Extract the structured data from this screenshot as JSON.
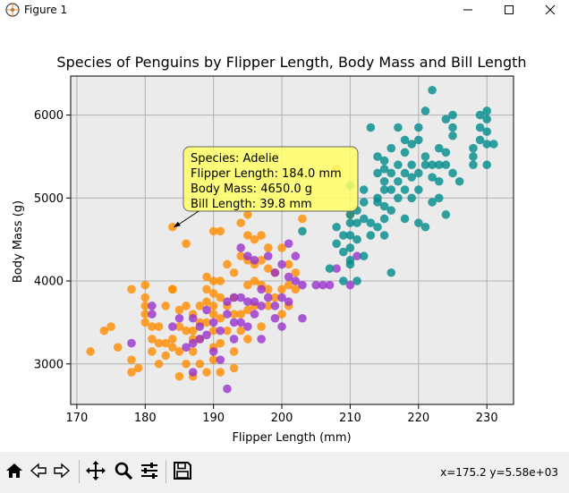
{
  "window": {
    "title": "Figure 1",
    "minimize_icon": "minimize-icon",
    "maximize_icon": "maximize-icon",
    "close_icon": "close-icon"
  },
  "toolbar": {
    "buttons": [
      "home-icon",
      "back-arrow-icon",
      "forward-arrow-icon",
      "pan-icon",
      "zoom-icon",
      "configure-subplots-icon",
      "save-icon"
    ],
    "status": "x=175.2 y=5.58e+03"
  },
  "chart_data": {
    "type": "scatter",
    "title": "Species of Penguins by Flipper Length, Body Mass and Bill Length",
    "xlabel": "Flipper Length (mm)",
    "ylabel": "Body Mass (g)",
    "xlim": [
      169.1,
      233.9
    ],
    "ylim": [
      2512,
      6470
    ],
    "xticks": [
      170,
      180,
      190,
      200,
      210,
      220,
      230
    ],
    "yticks": [
      3000,
      4000,
      5000,
      6000
    ],
    "grid": true,
    "background": "#ebebeb",
    "colors": {
      "orange": "#ff8c00",
      "purple": "#9932cc",
      "teal": "#008b8b"
    },
    "series": [
      {
        "color": "orange",
        "points": [
          [
            172,
            3150
          ],
          [
            174,
            3400
          ],
          [
            175,
            3450
          ],
          [
            176,
            3200
          ],
          [
            178,
            3900
          ],
          [
            178,
            3050
          ],
          [
            178,
            2900
          ],
          [
            179,
            2950
          ],
          [
            180,
            3950
          ],
          [
            180,
            3800
          ],
          [
            180,
            3700
          ],
          [
            180,
            3600
          ],
          [
            180,
            3500
          ],
          [
            181,
            3300
          ],
          [
            181,
            3150
          ],
          [
            182,
            3250
          ],
          [
            182,
            3450
          ],
          [
            182,
            3000
          ],
          [
            183,
            3100
          ],
          [
            183,
            3700
          ],
          [
            183,
            3250
          ],
          [
            184,
            4650
          ],
          [
            184,
            3900
          ],
          [
            184,
            3300
          ],
          [
            184,
            3200
          ],
          [
            185,
            3650
          ],
          [
            185,
            3150
          ],
          [
            185,
            2850
          ],
          [
            185,
            3450
          ],
          [
            186,
            4450
          ],
          [
            186,
            3700
          ],
          [
            186,
            3400
          ],
          [
            186,
            3000
          ],
          [
            187,
            3600
          ],
          [
            187,
            3400
          ],
          [
            187,
            3300
          ],
          [
            187,
            3150
          ],
          [
            187,
            2850
          ],
          [
            188,
            3700
          ],
          [
            188,
            3500
          ],
          [
            188,
            3300
          ],
          [
            188,
            3000
          ],
          [
            189,
            4050
          ],
          [
            189,
            3900
          ],
          [
            189,
            3750
          ],
          [
            189,
            3500
          ],
          [
            189,
            2900
          ],
          [
            190,
            4600
          ],
          [
            190,
            4000
          ],
          [
            190,
            3850
          ],
          [
            190,
            3700
          ],
          [
            190,
            3600
          ],
          [
            190,
            3400
          ],
          [
            190,
            3200
          ],
          [
            190,
            3050
          ],
          [
            191,
            4600
          ],
          [
            191,
            4000
          ],
          [
            191,
            3800
          ],
          [
            191,
            3550
          ],
          [
            191,
            3250
          ],
          [
            191,
            2900
          ],
          [
            192,
            4200
          ],
          [
            192,
            3700
          ],
          [
            192,
            3400
          ],
          [
            193,
            4100
          ],
          [
            193,
            3800
          ],
          [
            193,
            3600
          ],
          [
            193,
            3150
          ],
          [
            193,
            2950
          ],
          [
            194,
            4700
          ],
          [
            194,
            4300
          ],
          [
            194,
            3600
          ],
          [
            194,
            3400
          ],
          [
            195,
            4800
          ],
          [
            195,
            4550
          ],
          [
            195,
            4250
          ],
          [
            195,
            3950
          ],
          [
            195,
            3650
          ],
          [
            195,
            3300
          ],
          [
            196,
            4500
          ],
          [
            196,
            4200
          ],
          [
            196,
            4000
          ],
          [
            196,
            3700
          ],
          [
            197,
            4550
          ],
          [
            197,
            4250
          ],
          [
            197,
            3950
          ],
          [
            197,
            3450
          ],
          [
            198,
            4400
          ],
          [
            198,
            4150
          ],
          [
            198,
            3900
          ],
          [
            198,
            3700
          ],
          [
            199,
            4100
          ],
          [
            199,
            3800
          ],
          [
            200,
            4400
          ],
          [
            200,
            3900
          ],
          [
            200,
            3600
          ],
          [
            201,
            4200
          ],
          [
            201,
            3950
          ],
          [
            201,
            3700
          ],
          [
            202,
            4100
          ],
          [
            202,
            3900
          ],
          [
            203,
            4750
          ],
          [
            208,
            5350
          ],
          [
            210,
            4800
          ],
          [
            184,
            3900
          ],
          [
            181,
            3450
          ]
        ]
      },
      {
        "color": "purple",
        "points": [
          [
            178,
            3250
          ],
          [
            181,
            3700
          ],
          [
            181,
            3600
          ],
          [
            184,
            3450
          ],
          [
            185,
            3550
          ],
          [
            186,
            3200
          ],
          [
            187,
            3550
          ],
          [
            187,
            3250
          ],
          [
            187,
            2900
          ],
          [
            188,
            3450
          ],
          [
            188,
            3300
          ],
          [
            189,
            3350
          ],
          [
            189,
            3650
          ],
          [
            190,
            3150
          ],
          [
            190,
            3500
          ],
          [
            191,
            3400
          ],
          [
            191,
            3050
          ],
          [
            192,
            3600
          ],
          [
            192,
            3750
          ],
          [
            192,
            2700
          ],
          [
            193,
            3800
          ],
          [
            193,
            3500
          ],
          [
            193,
            3300
          ],
          [
            194,
            4400
          ],
          [
            194,
            3800
          ],
          [
            194,
            3500
          ],
          [
            195,
            4300
          ],
          [
            195,
            3750
          ],
          [
            195,
            3450
          ],
          [
            196,
            4250
          ],
          [
            196,
            3750
          ],
          [
            196,
            3600
          ],
          [
            197,
            3900
          ],
          [
            197,
            3700
          ],
          [
            197,
            3300
          ],
          [
            198,
            4300
          ],
          [
            198,
            3800
          ],
          [
            199,
            4100
          ],
          [
            199,
            3700
          ],
          [
            199,
            3550
          ],
          [
            200,
            4200
          ],
          [
            200,
            3800
          ],
          [
            200,
            3450
          ],
          [
            201,
            4450
          ],
          [
            201,
            4050
          ],
          [
            201,
            3750
          ],
          [
            202,
            4300
          ],
          [
            202,
            4000
          ],
          [
            203,
            3950
          ],
          [
            203,
            3550
          ],
          [
            205,
            3950
          ],
          [
            206,
            3950
          ],
          [
            207,
            3950
          ],
          [
            210,
            3950
          ],
          [
            211,
            4300
          ],
          [
            208,
            4150
          ]
        ]
      },
      {
        "color": "teal",
        "points": [
          [
            203,
            4600
          ],
          [
            207,
            4150
          ],
          [
            208,
            4450
          ],
          [
            208,
            4650
          ],
          [
            209,
            4550
          ],
          [
            209,
            4350
          ],
          [
            209,
            4000
          ],
          [
            210,
            4800
          ],
          [
            210,
            4700
          ],
          [
            210,
            4550
          ],
          [
            210,
            4400
          ],
          [
            210,
            4250
          ],
          [
            210,
            4200
          ],
          [
            210,
            5150
          ],
          [
            211,
            4700
          ],
          [
            211,
            4500
          ],
          [
            211,
            4850
          ],
          [
            212,
            4300
          ],
          [
            212,
            4750
          ],
          [
            212,
            4950
          ],
          [
            212,
            5100
          ],
          [
            213,
            4700
          ],
          [
            213,
            5850
          ],
          [
            213,
            4550
          ],
          [
            214,
            5000
          ],
          [
            214,
            4650
          ],
          [
            214,
            4950
          ],
          [
            214,
            5300
          ],
          [
            214,
            5500
          ],
          [
            215,
            4900
          ],
          [
            215,
            5100
          ],
          [
            215,
            5200
          ],
          [
            215,
            5350
          ],
          [
            215,
            5450
          ],
          [
            215,
            4750
          ],
          [
            215,
            4550
          ],
          [
            216,
            4850
          ],
          [
            216,
            5100
          ],
          [
            216,
            5300
          ],
          [
            216,
            5600
          ],
          [
            216,
            4100
          ],
          [
            217,
            5000
          ],
          [
            217,
            5200
          ],
          [
            217,
            5400
          ],
          [
            217,
            5850
          ],
          [
            218,
            4750
          ],
          [
            218,
            5100
          ],
          [
            218,
            5300
          ],
          [
            218,
            5700
          ],
          [
            218,
            5550
          ],
          [
            219,
            5000
          ],
          [
            219,
            5250
          ],
          [
            219,
            5400
          ],
          [
            219,
            5650
          ],
          [
            220,
            4700
          ],
          [
            220,
            5100
          ],
          [
            220,
            5300
          ],
          [
            220,
            5700
          ],
          [
            220,
            5850
          ],
          [
            221,
            4650
          ],
          [
            221,
            5400
          ],
          [
            221,
            5500
          ],
          [
            221,
            6050
          ],
          [
            222,
            5250
          ],
          [
            222,
            5400
          ],
          [
            222,
            6300
          ],
          [
            222,
            4950
          ],
          [
            223,
            5600
          ],
          [
            223,
            5400
          ],
          [
            223,
            5200
          ],
          [
            223,
            5000
          ],
          [
            224,
            5550
          ],
          [
            224,
            5950
          ],
          [
            224,
            5400
          ],
          [
            224,
            4800
          ],
          [
            225,
            5300
          ],
          [
            225,
            5850
          ],
          [
            225,
            5750
          ],
          [
            225,
            6000
          ],
          [
            226,
            5200
          ],
          [
            228,
            5600
          ],
          [
            228,
            5400
          ],
          [
            228,
            5500
          ],
          [
            229,
            5850
          ],
          [
            229,
            6000
          ],
          [
            229,
            5700
          ],
          [
            230,
            5650
          ],
          [
            230,
            5800
          ],
          [
            230,
            5950
          ],
          [
            230,
            6050
          ],
          [
            230,
            5400
          ],
          [
            231,
            5650
          ],
          [
            211,
            4000
          ]
        ]
      }
    ],
    "annotation": {
      "lines": [
        "Species: Adelie",
        "Flipper Length: 184.0 mm",
        "Body Mass: 4650.0 g",
        "Bill Length: 39.8 mm"
      ],
      "target": [
        184,
        4650
      ],
      "box_color": "#ffff66"
    }
  }
}
